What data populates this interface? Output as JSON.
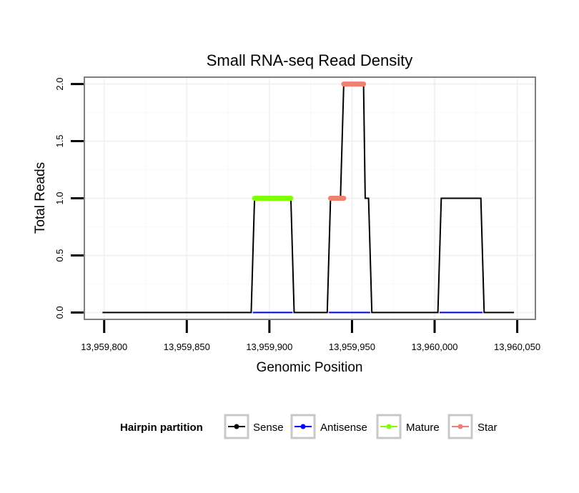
{
  "chart_data": {
    "type": "line",
    "title": "Small RNA-seq Read Density",
    "xlabel": "Genomic Position",
    "ylabel": "Total Reads",
    "xlim": [
      13959788,
      13960061
    ],
    "ylim": [
      -0.06,
      2.06
    ],
    "x_ticks": [
      13959800,
      13959850,
      13959900,
      13959950,
      13960000,
      13960050
    ],
    "x_tick_labels": [
      "13,959,800",
      "13,959,850",
      "13,959,900",
      "13,959,950",
      "13,960,000",
      "13,960,050"
    ],
    "y_ticks": [
      0,
      0.5,
      1,
      1.5,
      2
    ],
    "y_tick_labels": [
      "0.0",
      "0.5",
      "1.0",
      "1.5",
      "2.0"
    ],
    "grid": true,
    "legend": {
      "title": "Hairpin partition",
      "position": "bottom",
      "entries": [
        "Sense",
        "Antisense",
        "Mature",
        "Star"
      ]
    },
    "series": [
      {
        "name": "Sense",
        "color": "#000000",
        "style": "line",
        "x": [
          13959799,
          13959889,
          13959891,
          13959913,
          13959915,
          13959935,
          13959937,
          13959943,
          13959945,
          13959957,
          13959958,
          13959960,
          13959962,
          13960002,
          13960004,
          13960028,
          13960030,
          13960048
        ],
        "y": [
          0,
          0,
          1,
          1,
          0,
          0,
          1,
          1,
          2,
          2,
          1,
          1,
          0,
          0,
          1,
          1,
          0,
          0
        ]
      },
      {
        "name": "Antisense",
        "color": "#0000ff",
        "style": "segments",
        "segments": [
          [
            13959890,
            13959914,
            0
          ],
          [
            13959936,
            13959961,
            0
          ],
          [
            13960003,
            13960029,
            0
          ]
        ]
      },
      {
        "name": "Mature",
        "color": "#7fff00",
        "style": "segments",
        "segments": [
          [
            13959891,
            13959913,
            1
          ]
        ]
      },
      {
        "name": "Star",
        "color": "#f08070",
        "style": "segments",
        "segments": [
          [
            13959937,
            13959945,
            1
          ],
          [
            13959945,
            13959957,
            2
          ]
        ]
      }
    ]
  }
}
